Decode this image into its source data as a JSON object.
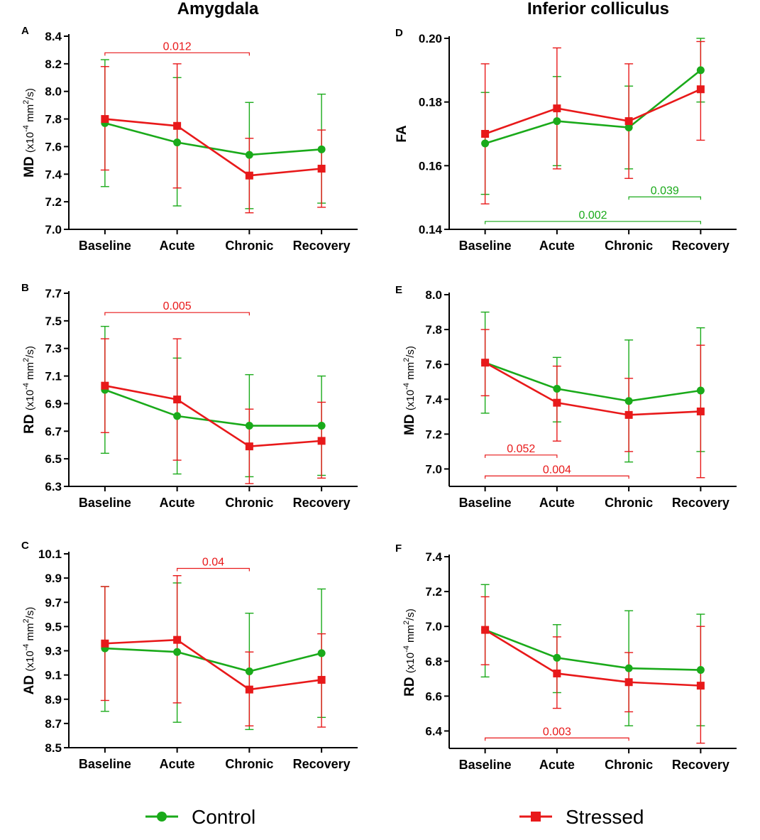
{
  "figure": {
    "column_titles": [
      "Amygdala",
      "Inferior colliculus"
    ],
    "legend": [
      {
        "name": "Control",
        "color": "#1aaa1a",
        "marker": "circle"
      },
      {
        "name": "Stressed",
        "color": "#e8191a",
        "marker": "square"
      }
    ]
  },
  "chart_data": [
    {
      "panel": "A",
      "type": "line",
      "region": "Amygdala",
      "categories": [
        "Baseline",
        "Acute",
        "Chronic",
        "Recovery"
      ],
      "ylabel": "MD (x10",
      "yexp": "-4",
      "yunit": " mm",
      "yunit_exp": "2",
      "yunit_tail": "/s)",
      "ylim": [
        7.0,
        8.4
      ],
      "yticks": [
        "7.0",
        "7.2",
        "7.4",
        "7.6",
        "7.8",
        "8.0",
        "8.2",
        "8.4"
      ],
      "series": [
        {
          "name": "Control",
          "values": [
            7.77,
            7.63,
            7.54,
            7.58
          ],
          "upper": [
            8.23,
            8.1,
            7.92,
            7.98
          ],
          "lower": [
            7.31,
            7.17,
            7.15,
            7.19
          ]
        },
        {
          "name": "Stressed",
          "values": [
            7.8,
            7.75,
            7.39,
            7.44
          ],
          "upper": [
            8.18,
            8.2,
            7.66,
            7.72
          ],
          "lower": [
            7.43,
            7.3,
            7.12,
            7.16
          ]
        }
      ],
      "annotations": [
        {
          "text": "0.012",
          "from": "Baseline",
          "to": "Chronic",
          "level": 8.28,
          "series": "Stressed"
        }
      ]
    },
    {
      "panel": "B",
      "type": "line",
      "region": "Amygdala",
      "categories": [
        "Baseline",
        "Acute",
        "Chronic",
        "Recovery"
      ],
      "ylabel": "RD (x10",
      "yexp": "-4",
      "yunit": " mm",
      "yunit_exp": "2",
      "yunit_tail": "/s)",
      "ylim": [
        6.3,
        7.7
      ],
      "yticks": [
        "6.3",
        "6.5",
        "6.7",
        "6.9",
        "7.1",
        "7.3",
        "7.5",
        "7.7"
      ],
      "series": [
        {
          "name": "Control",
          "values": [
            7.0,
            6.81,
            6.74,
            6.74
          ],
          "upper": [
            7.46,
            7.23,
            7.11,
            7.1
          ],
          "lower": [
            6.54,
            6.39,
            6.37,
            6.38
          ]
        },
        {
          "name": "Stressed",
          "values": [
            7.03,
            6.93,
            6.59,
            6.63
          ],
          "upper": [
            7.37,
            7.37,
            6.86,
            6.91
          ],
          "lower": [
            6.69,
            6.49,
            6.32,
            6.36
          ]
        }
      ],
      "annotations": [
        {
          "text": "0.005",
          "from": "Baseline",
          "to": "Chronic",
          "level": 7.56,
          "series": "Stressed"
        }
      ]
    },
    {
      "panel": "C",
      "type": "line",
      "region": "Amygdala",
      "categories": [
        "Baseline",
        "Acute",
        "Chronic",
        "Recovery"
      ],
      "ylabel": "AD (x10",
      "yexp": "-4",
      "yunit": " mm",
      "yunit_exp": "2",
      "yunit_tail": "/s)",
      "ylim": [
        8.5,
        10.1
      ],
      "yticks": [
        "8.5",
        "8.7",
        "8.9",
        "9.1",
        "9.3",
        "9.5",
        "9.7",
        "9.9",
        "10.1"
      ],
      "series": [
        {
          "name": "Control",
          "values": [
            9.32,
            9.29,
            9.13,
            9.28
          ],
          "upper": [
            9.83,
            9.86,
            9.61,
            9.81
          ],
          "lower": [
            8.8,
            8.71,
            8.65,
            8.75
          ]
        },
        {
          "name": "Stressed",
          "values": [
            9.36,
            9.39,
            8.98,
            9.06
          ],
          "upper": [
            9.83,
            9.92,
            9.29,
            9.44
          ],
          "lower": [
            8.89,
            8.87,
            8.68,
            8.67
          ]
        }
      ],
      "annotations": [
        {
          "text": "0.04",
          "from": "Acute",
          "to": "Chronic",
          "level": 9.98,
          "series": "Stressed"
        }
      ]
    },
    {
      "panel": "D",
      "type": "line",
      "region": "Inferior colliculus",
      "categories": [
        "Baseline",
        "Acute",
        "Chronic",
        "Recovery"
      ],
      "ylabel": "FA",
      "yexp": "",
      "yunit": "",
      "yunit_exp": "",
      "yunit_tail": "",
      "ylim": [
        0.14,
        0.2
      ],
      "yticks": [
        "0.14",
        "0.16",
        "0.18",
        "0.20"
      ],
      "series": [
        {
          "name": "Control",
          "values": [
            0.167,
            0.174,
            0.172,
            0.19
          ],
          "upper": [
            0.183,
            0.188,
            0.185,
            0.2
          ],
          "lower": [
            0.151,
            0.16,
            0.159,
            0.18
          ]
        },
        {
          "name": "Stressed",
          "values": [
            0.17,
            0.178,
            0.174,
            0.184
          ],
          "upper": [
            0.192,
            0.197,
            0.192,
            0.199
          ],
          "lower": [
            0.148,
            0.159,
            0.156,
            0.168
          ]
        }
      ],
      "annotations": [
        {
          "text": "0.039",
          "from": "Chronic",
          "to": "Recovery",
          "level": 0.1502,
          "series": "Control"
        },
        {
          "text": "0.002",
          "from": "Baseline",
          "to": "Recovery",
          "level": 0.1425,
          "series": "Control"
        }
      ]
    },
    {
      "panel": "E",
      "type": "line",
      "region": "Inferior colliculus",
      "categories": [
        "Baseline",
        "Acute",
        "Chronic",
        "Recovery"
      ],
      "ylabel": "MD (x10",
      "yexp": "-4",
      "yunit": " mm",
      "yunit_exp": "2",
      "yunit_tail": "/s)",
      "ylim": [
        6.9,
        8.0
      ],
      "yticks": [
        "7.0",
        "7.2",
        "7.4",
        "7.6",
        "7.8",
        "8.0"
      ],
      "series": [
        {
          "name": "Control",
          "values": [
            7.61,
            7.46,
            7.39,
            7.45
          ],
          "upper": [
            7.9,
            7.64,
            7.74,
            7.81
          ],
          "lower": [
            7.32,
            7.27,
            7.04,
            7.1
          ]
        },
        {
          "name": "Stressed",
          "values": [
            7.61,
            7.38,
            7.31,
            7.33
          ],
          "upper": [
            7.8,
            7.59,
            7.52,
            7.71
          ],
          "lower": [
            7.42,
            7.16,
            7.1,
            6.95
          ]
        }
      ],
      "annotations": [
        {
          "text": "0.052",
          "from": "Baseline",
          "to": "Acute",
          "level": 7.08,
          "series": "Stressed"
        },
        {
          "text": "0.004",
          "from": "Baseline",
          "to": "Chronic",
          "level": 6.96,
          "series": "Stressed"
        }
      ]
    },
    {
      "panel": "F",
      "type": "line",
      "region": "Inferior colliculus",
      "categories": [
        "Baseline",
        "Acute",
        "Chronic",
        "Recovery"
      ],
      "ylabel": "RD (x10",
      "yexp": "-4",
      "yunit": " mm",
      "yunit_exp": "2",
      "yunit_tail": "/s)",
      "ylim": [
        6.3,
        7.4
      ],
      "yticks": [
        "6.4",
        "6.6",
        "6.8",
        "7.0",
        "7.2",
        "7.4"
      ],
      "series": [
        {
          "name": "Control",
          "values": [
            6.98,
            6.82,
            6.76,
            6.75
          ],
          "upper": [
            7.24,
            7.01,
            7.09,
            7.07
          ],
          "lower": [
            6.71,
            6.62,
            6.43,
            6.43
          ]
        },
        {
          "name": "Stressed",
          "values": [
            6.98,
            6.73,
            6.68,
            6.66
          ],
          "upper": [
            7.17,
            6.94,
            6.85,
            7.0
          ],
          "lower": [
            6.78,
            6.53,
            6.51,
            6.33
          ]
        }
      ],
      "annotations": [
        {
          "text": "0.003",
          "from": "Baseline",
          "to": "Chronic",
          "level": 6.36,
          "series": "Stressed"
        }
      ]
    }
  ]
}
